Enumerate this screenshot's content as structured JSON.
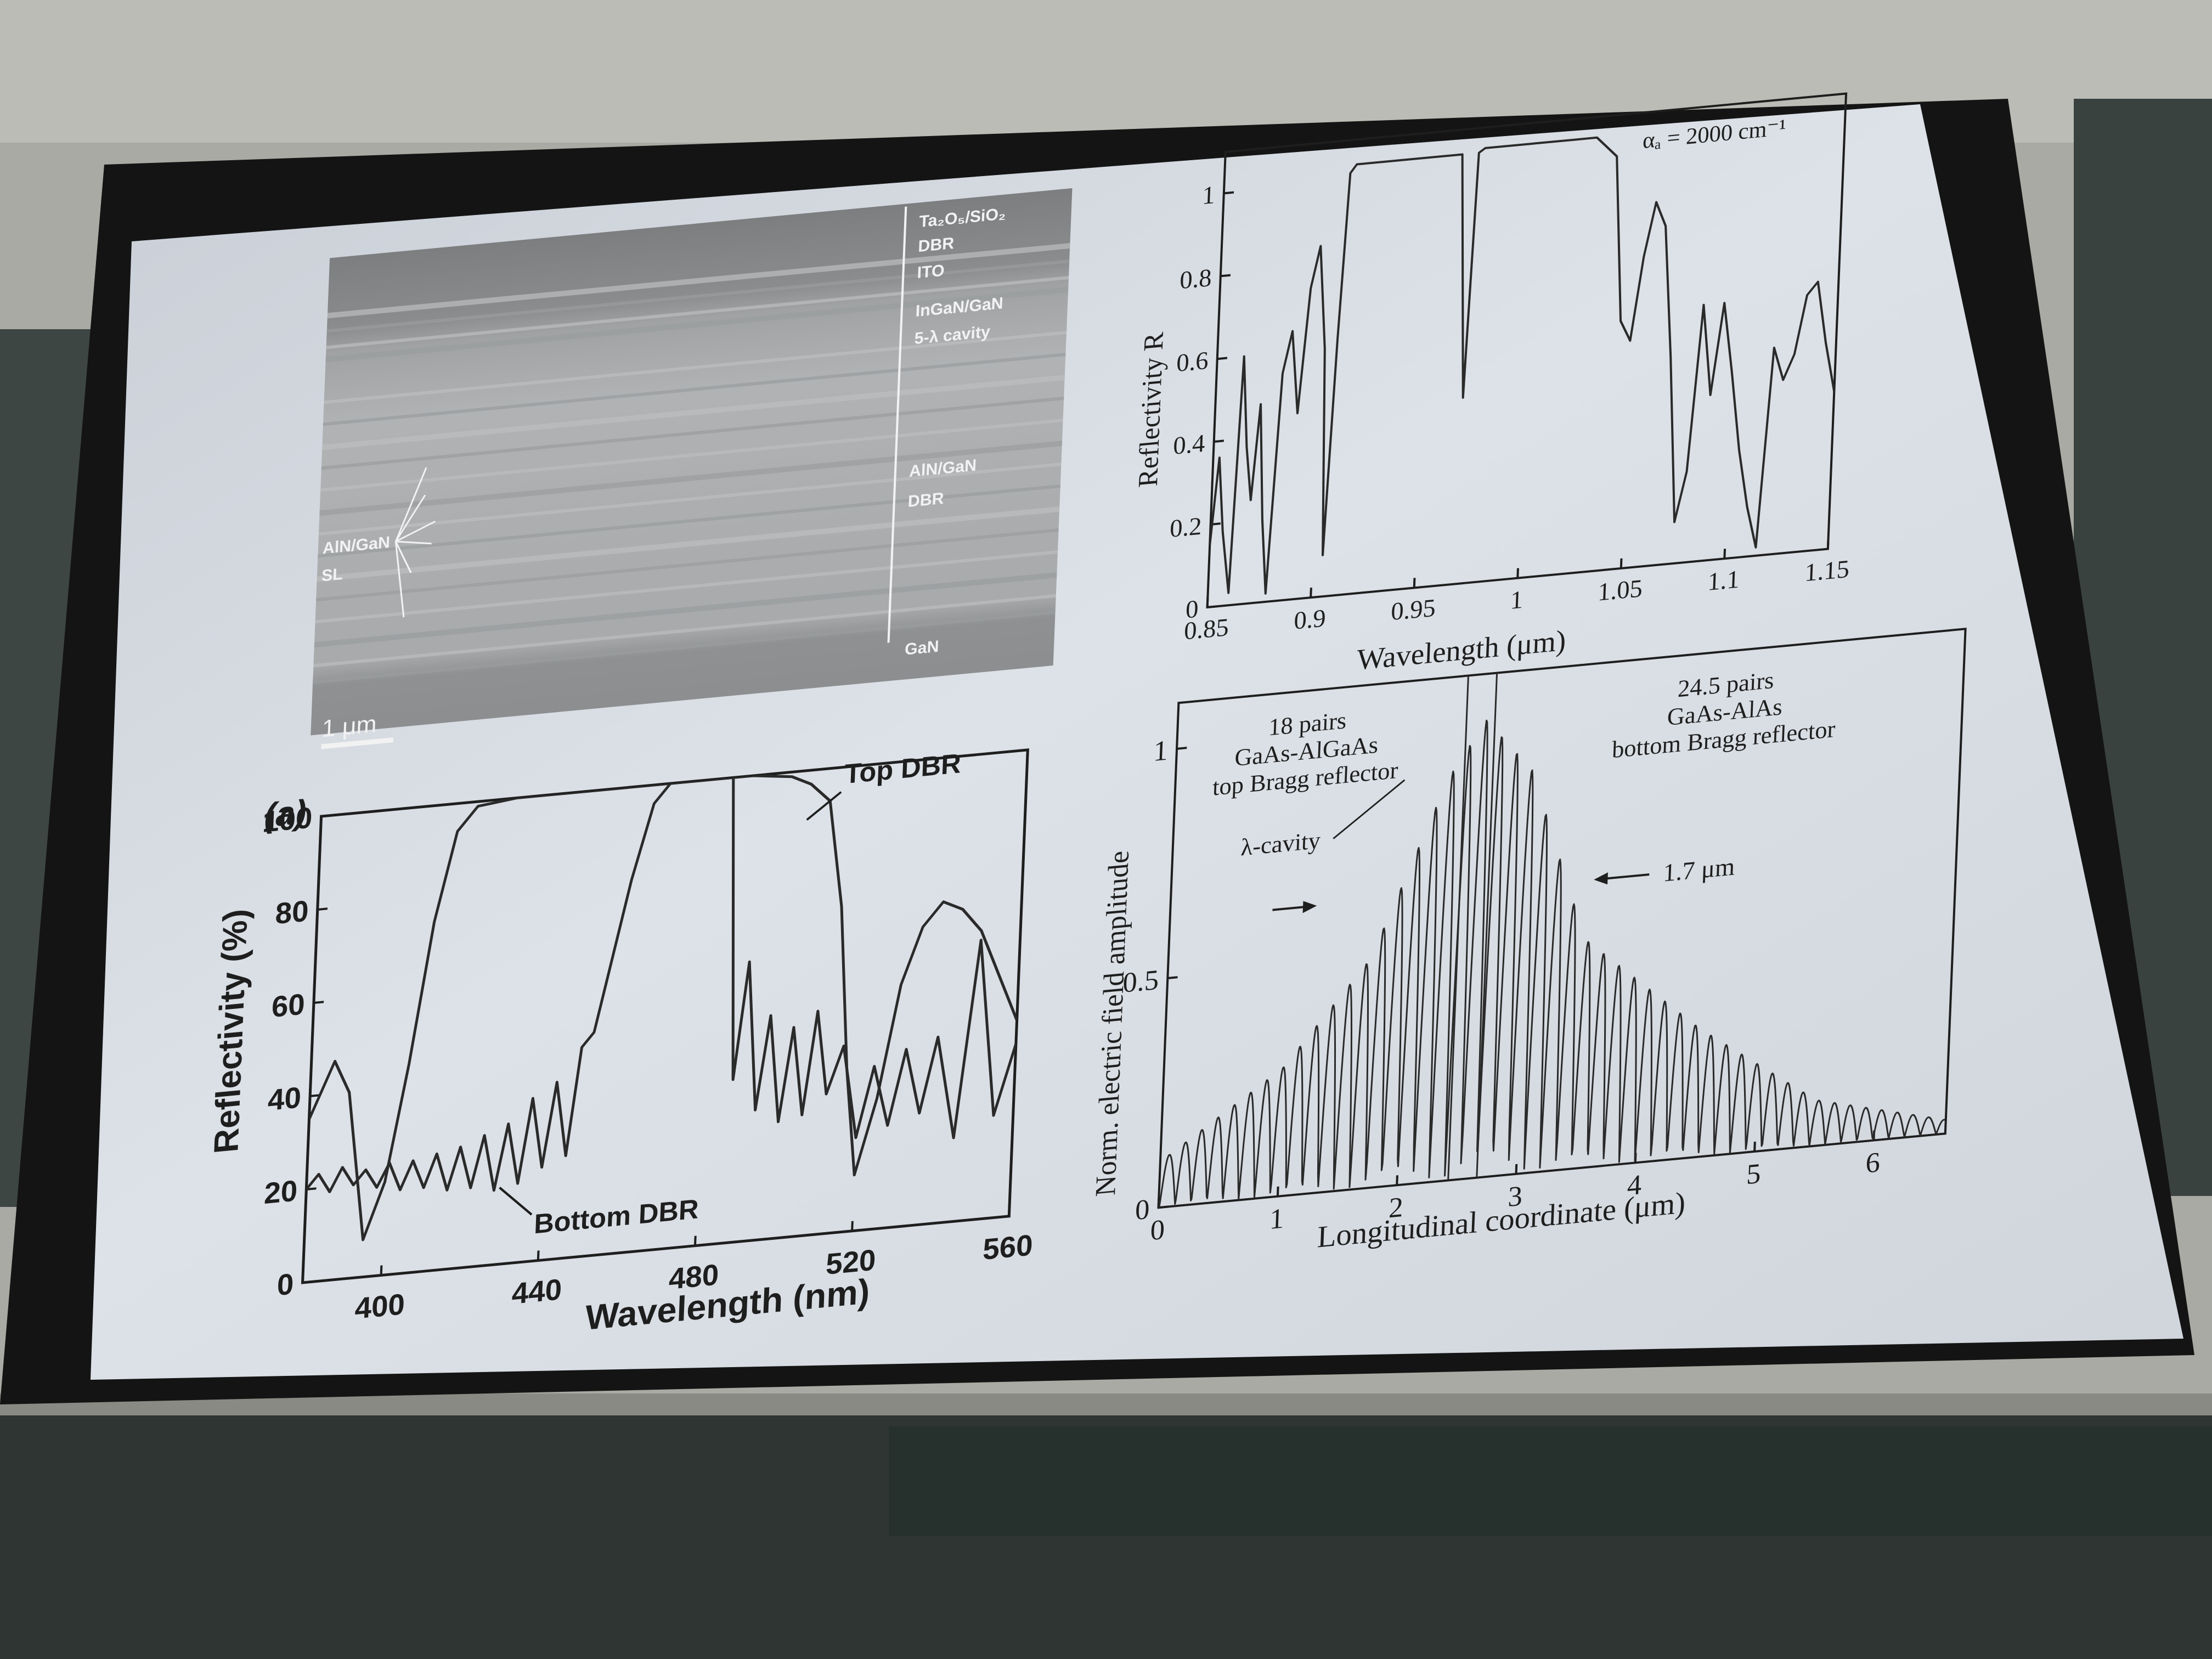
{
  "sem_image": {
    "layer_labels": {
      "top_dbr_material": "Ta₂O₅/SiO₂",
      "top_dbr": "DBR",
      "ito": "ITO",
      "cavity_material": "InGaN/GaN",
      "cavity": "5-λ cavity",
      "sl_material": "AlN/GaN",
      "sl": "SL",
      "bottom_dbr_material": "AlN/GaN",
      "bottom_dbr": "DBR",
      "substrate": "GaN"
    },
    "scale_bar": "1 μm"
  },
  "chart_data": [
    {
      "type": "line",
      "panel_label": "(a)",
      "xlabel": "Wavelength (nm)",
      "ylabel": "Reflectivity (%)",
      "xlim": [
        380,
        560
      ],
      "ylim": [
        0,
        100
      ],
      "x_ticks": [
        "400",
        "440",
        "480",
        "520",
        "560"
      ],
      "y_ticks": [
        "0",
        "20",
        "40",
        "60",
        "80",
        "100"
      ],
      "annotations": [
        "Top DBR",
        "Bottom DBR"
      ],
      "series": [
        {
          "name": "Top DBR",
          "x": [
            380,
            386,
            390,
            395,
            400,
            405,
            410,
            415,
            420,
            430,
            440,
            450,
            460,
            470,
            480,
            490,
            500,
            505,
            510,
            514,
            517,
            520,
            525,
            530,
            535,
            540,
            545,
            550,
            555,
            560
          ],
          "y": [
            35,
            47,
            40,
            8,
            20,
            45,
            75,
            94,
            99,
            100,
            100,
            100,
            100,
            100,
            100,
            100,
            99,
            97,
            93,
            70,
            35,
            12,
            28,
            52,
            64,
            69,
            67,
            62,
            52,
            42
          ]
        },
        {
          "name": "Bottom DBR",
          "x": [
            380,
            383,
            386,
            389,
            392,
            395,
            398,
            401,
            404,
            407,
            410,
            413,
            416,
            419,
            422,
            425,
            428,
            431,
            434,
            437,
            440,
            443,
            446,
            449,
            452,
            455,
            460,
            465,
            470,
            474,
            478,
            482,
            485,
            488,
            491,
            494,
            497,
            500,
            503,
            506,
            509,
            512,
            516,
            520,
            524,
            528,
            532,
            536,
            540,
            545,
            550,
            555,
            560
          ],
          "y": [
            20,
            23,
            19,
            24,
            20,
            23,
            19,
            24,
            18,
            24,
            18,
            25,
            17,
            26,
            17,
            28,
            16,
            30,
            17,
            35,
            20,
            38,
            22,
            45,
            48,
            60,
            80,
            96,
            101,
            101,
            101,
            101,
            100,
            35,
            60,
            28,
            48,
            25,
            45,
            26,
            48,
            30,
            40,
            20,
            35,
            22,
            38,
            24,
            40,
            18,
            60,
            22,
            37
          ]
        }
      ]
    },
    {
      "type": "line",
      "annotation": "αₐ = 2000 cm⁻¹",
      "xlabel": "Wavelength (μm)",
      "ylabel": "Reflectivity R",
      "xlim": [
        0.85,
        1.15
      ],
      "ylim": [
        0,
        1.1
      ],
      "x_ticks": [
        "0.85",
        "0.9",
        "0.95",
        "1",
        "1.05",
        "1.1",
        "1.15"
      ],
      "y_ticks": [
        "0",
        "0.2",
        "0.4",
        "0.6",
        "0.8",
        "1"
      ],
      "series": [
        {
          "x": [
            0.85,
            0.853,
            0.856,
            0.86,
            0.863,
            0.866,
            0.869,
            0.872,
            0.875,
            0.878,
            0.882,
            0.886,
            0.89,
            0.894,
            0.898,
            0.902,
            0.905,
            0.908,
            0.911,
            0.914,
            0.917,
            0.92,
            0.93,
            0.95,
            0.965,
            0.97,
            0.973,
            0.976,
            0.98,
            1.0,
            1.02,
            1.03,
            1.04,
            1.045,
            1.05,
            1.055,
            1.06,
            1.065,
            1.07,
            1.075,
            1.08,
            1.085,
            1.09,
            1.095,
            1.1,
            1.105,
            1.11,
            1.115,
            1.12,
            1.125,
            1.13,
            1.135,
            1.14,
            1.145,
            1.15
          ],
          "y": [
            0.15,
            0.36,
            0.18,
            0.03,
            0.6,
            0.38,
            0.25,
            0.48,
            0.2,
            0.02,
            0.55,
            0.65,
            0.45,
            0.75,
            0.85,
            0.6,
            0.1,
            0.62,
            1.02,
            1.04,
            1.04,
            1.04,
            1.04,
            1.04,
            1.04,
            0.45,
            1.04,
            1.05,
            1.05,
            1.05,
            1.05,
            1.05,
            1.0,
            0.6,
            0.55,
            0.75,
            0.88,
            0.82,
            0.5,
            0.1,
            0.22,
            0.62,
            0.4,
            0.62,
            0.45,
            0.26,
            0.12,
            0.02,
            0.5,
            0.42,
            0.48,
            0.62,
            0.65,
            0.5,
            0.38
          ]
        }
      ]
    },
    {
      "type": "line",
      "xlabel": "Longitudinal coordinate (μm)",
      "ylabel": "Norm. electric field amplitude",
      "xlim": [
        0,
        6.6
      ],
      "ylim": [
        0,
        1.1
      ],
      "x_ticks": [
        "0",
        "1",
        "2",
        "3",
        "4",
        "5",
        "6"
      ],
      "y_ticks": [
        "0",
        "0.5",
        "1"
      ],
      "annotations": [
        "18 pairs",
        "GaAs-AlGaAs",
        "top Bragg reflector",
        "24.5 pairs",
        "GaAs-AlAs",
        "bottom Bragg reflector",
        "λ-cavity",
        "1.7 μm"
      ],
      "envelope": {
        "peak_x": 2.6,
        "peak_y": 1.0,
        "x": [
          0,
          1.0,
          1.7,
          2.3,
          2.6,
          3.0,
          3.5,
          4.5,
          5.5,
          6.6
        ],
        "y": [
          0.1,
          0.28,
          0.5,
          0.88,
          1.0,
          0.88,
          0.5,
          0.28,
          0.1,
          0.03
        ]
      }
    }
  ]
}
